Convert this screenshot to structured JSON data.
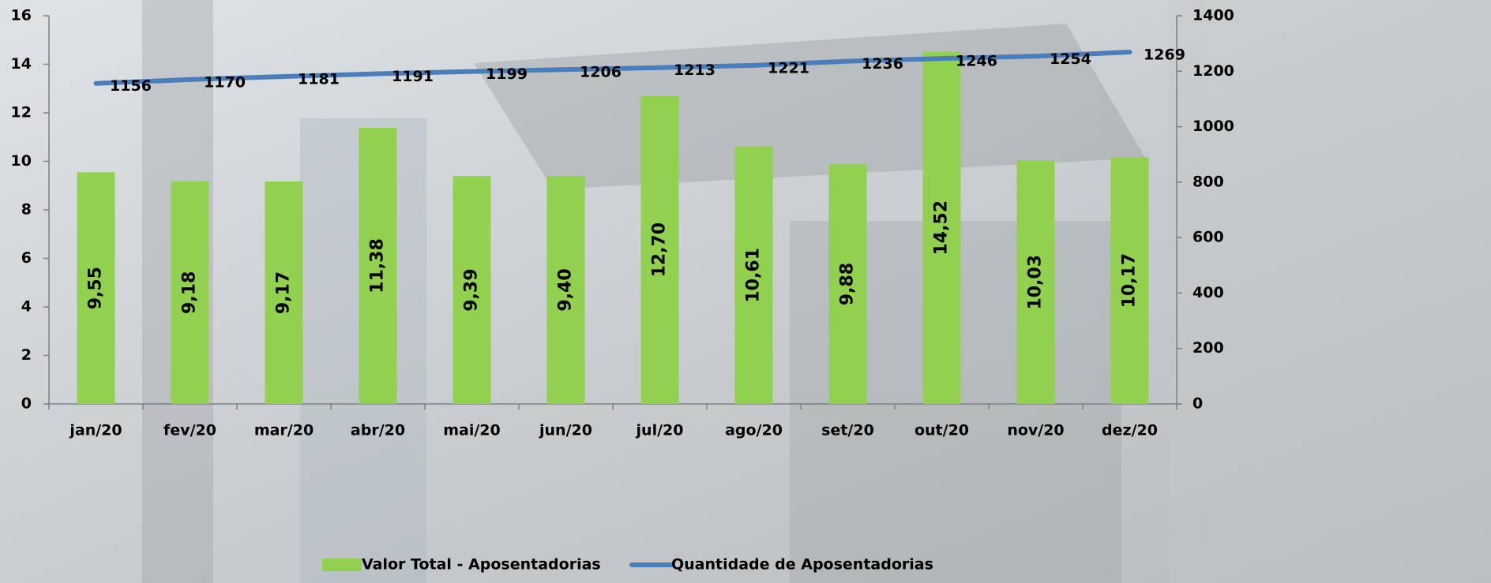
{
  "chart_data": {
    "type": "bar_line",
    "categories": [
      "jan/20",
      "fev/20",
      "mar/20",
      "abr/20",
      "mai/20",
      "jun/20",
      "jul/20",
      "ago/20",
      "set/20",
      "out/20",
      "nov/20",
      "dez/20"
    ],
    "series": [
      {
        "name": "Valor Total - Aposentadorias",
        "type": "bar",
        "color": "#92d050",
        "values": [
          9.55,
          9.18,
          9.17,
          11.38,
          9.39,
          9.4,
          12.7,
          10.61,
          9.88,
          14.52,
          10.03,
          10.17
        ],
        "value_labels": [
          "9,55",
          "9,18",
          "9,17",
          "11,38",
          "9,39",
          "9,40",
          "12,70",
          "10,61",
          "9,88",
          "14,52",
          "10,03",
          "10,17"
        ]
      },
      {
        "name": "Quantidade de Aposentadorias",
        "type": "line",
        "axis": "y2",
        "color": "#4a7ebb",
        "values": [
          1156,
          1170,
          1181,
          1191,
          1199,
          1206,
          1213,
          1221,
          1236,
          1246,
          1254,
          1269
        ]
      }
    ],
    "ylim": [
      0,
      16
    ],
    "yticks": [
      0,
      2,
      4,
      6,
      8,
      10,
      12,
      14,
      16
    ],
    "y2lim": [
      0,
      1400
    ],
    "y2ticks": [
      0,
      200,
      400,
      600,
      800,
      1000,
      1200,
      1400
    ],
    "legend": "bottom"
  }
}
